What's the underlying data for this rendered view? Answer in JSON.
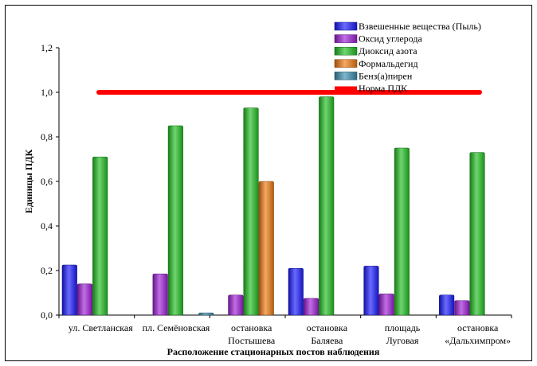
{
  "chart_data": {
    "type": "bar",
    "xlabel": "Расположение стационарных постов наблюдения",
    "ylabel": "Единицы ПДК",
    "ylim": [
      0,
      1.2
    ],
    "yticks": [
      "0,0",
      "0,2",
      "0,4",
      "0,6",
      "0,8",
      "1,0",
      "1,2"
    ],
    "grid": false,
    "legend_position": "top-right",
    "categories": [
      [
        "ул. Светланская"
      ],
      [
        "пл. Семёновская"
      ],
      [
        "остановка",
        "Постышева"
      ],
      [
        "остановка",
        "Баляева"
      ],
      [
        "площадь",
        "Луговая"
      ],
      [
        "остановка",
        "«Дальхимпром»"
      ]
    ],
    "series": [
      {
        "name": "Взвешенные вещества (Пыль)",
        "color": "#1a1aff",
        "values": [
          0.225,
          0,
          0,
          0.21,
          0.22,
          0.09
        ]
      },
      {
        "name": "Оксид углерода",
        "color": "#a020d8",
        "values": [
          0.14,
          0.185,
          0.09,
          0.075,
          0.095,
          0.065
        ]
      },
      {
        "name": "Диоксид азота",
        "color": "#22c022",
        "values": [
          0.71,
          0.85,
          0.93,
          0.98,
          0.75,
          0.73
        ]
      },
      {
        "name": "Формальдегид",
        "color": "#f07a10",
        "values": [
          0,
          0,
          0.6,
          0,
          0,
          0
        ]
      },
      {
        "name": "Бенз(а)пирен",
        "color": "#3a8fb0",
        "values": [
          0,
          0.01,
          0,
          0,
          0,
          0
        ]
      }
    ],
    "reference_line": {
      "name": "Норма ПДК",
      "value": 1.0,
      "color": "#ff0000"
    }
  }
}
